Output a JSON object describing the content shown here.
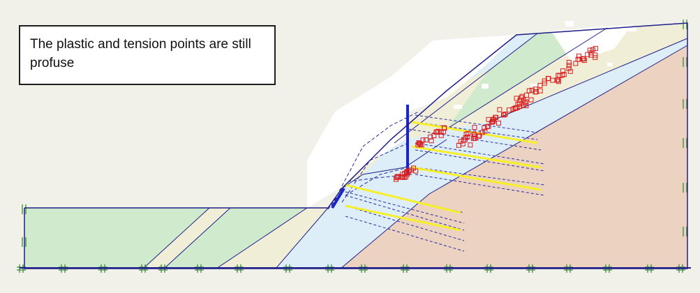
{
  "annotation": {
    "text": "The plastic and tension points are still profuse"
  },
  "colors": {
    "background": "#f2f1e9",
    "boundary": "#1f1f8a",
    "layer_green": "#cfeacd",
    "layer_cream": "#f1eed7",
    "layer_blue": "#ddeef8",
    "layer_peach": "#ecd2c0",
    "wall": "#1a24c8",
    "anchor": "#f6ef2a",
    "grout_dash": "#2a2aa0",
    "plastic_point": "#d81f1f",
    "fixity": "#3a8a3a"
  },
  "icons": {
    "plastic_point": "open-red-square",
    "fixity": "green-hash-mark"
  }
}
